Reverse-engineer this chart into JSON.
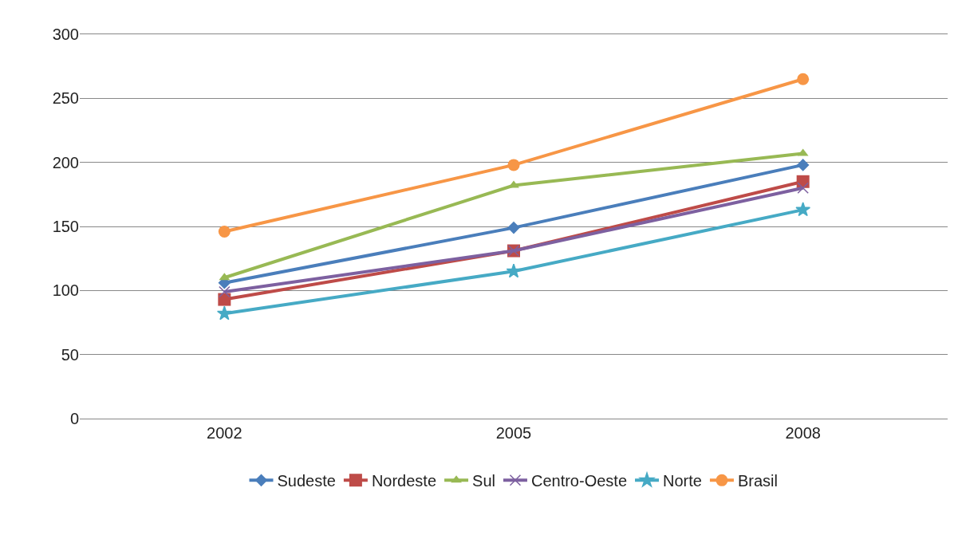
{
  "chart_data": {
    "type": "line",
    "categories": [
      "2002",
      "2005",
      "2008"
    ],
    "series": [
      {
        "name": "Sudeste",
        "color": "#4a7ebb",
        "marker": "diamond",
        "values": [
          106,
          149,
          198
        ]
      },
      {
        "name": "Nordeste",
        "color": "#be4b48",
        "marker": "square",
        "values": [
          93,
          131,
          185
        ]
      },
      {
        "name": "Sul",
        "color": "#98b954",
        "marker": "triangle",
        "values": [
          110,
          182,
          207
        ]
      },
      {
        "name": "Centro-Oeste",
        "color": "#7d60a0",
        "marker": "cross",
        "values": [
          99,
          131,
          180
        ]
      },
      {
        "name": "Norte",
        "color": "#46aac5",
        "marker": "star",
        "values": [
          82,
          115,
          163
        ]
      },
      {
        "name": "Brasil",
        "color": "#f79646",
        "marker": "circle",
        "values": [
          146,
          198,
          265
        ]
      }
    ],
    "ylim": [
      0,
      300
    ],
    "yticks": [
      0,
      50,
      100,
      150,
      200,
      250,
      300
    ],
    "grid": "y",
    "legend": "bottom",
    "line_style": "solid"
  }
}
